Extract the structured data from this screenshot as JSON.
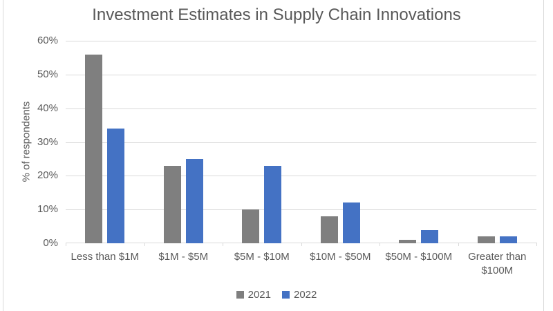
{
  "chart_data": {
    "type": "bar",
    "title": "Investment Estimates in Supply Chain Innovations",
    "xlabel": "",
    "ylabel": "% of respondents",
    "categories": [
      "Less than $1M",
      "$1M - $5M",
      "$5M - $10M",
      "$10M - $50M",
      "$50M - $100M",
      "Greater than $100M"
    ],
    "series": [
      {
        "name": "2021",
        "color": "#7f7f7f",
        "values": [
          56,
          23,
          10,
          8,
          1,
          2
        ]
      },
      {
        "name": "2022",
        "color": "#4472c4",
        "values": [
          34,
          25,
          23,
          12,
          4,
          2
        ]
      }
    ],
    "ylim": [
      0,
      60
    ],
    "ytick_step": 10,
    "ytick_labels": [
      "0%",
      "10%",
      "20%",
      "30%",
      "40%",
      "50%",
      "60%"
    ],
    "grid": true,
    "legend_position": "bottom"
  },
  "colors": {
    "grid": "#d9d9d9",
    "axis": "#d9d9d9",
    "text": "#595959",
    "background": "#ffffff",
    "frame_border": "#d9d9d9"
  }
}
